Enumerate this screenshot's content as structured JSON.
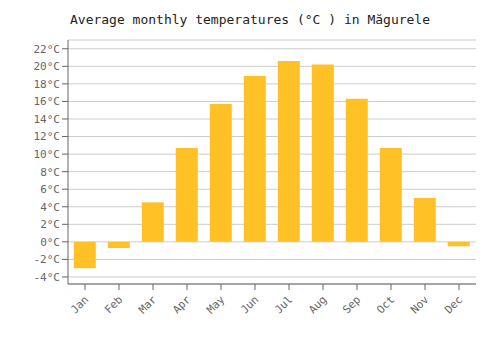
{
  "chart_data": {
    "type": "bar",
    "title": "Average monthly temperatures (°C ) in Măgurele",
    "categories": [
      "Jan",
      "Feb",
      "Mar",
      "Apr",
      "May",
      "Jun",
      "Jul",
      "Aug",
      "Sep",
      "Oct",
      "Nov",
      "Dec"
    ],
    "values": [
      -3.0,
      -0.7,
      4.5,
      10.7,
      15.7,
      18.9,
      20.6,
      20.2,
      16.3,
      10.7,
      5.0,
      -0.5
    ],
    "color": "#FFC125",
    "ylim": [
      -4.8,
      23.0
    ],
    "yticks": [
      {
        "value": -4,
        "label": "-4°C"
      },
      {
        "value": -2,
        "label": "-2°C"
      },
      {
        "value": 0,
        "label": "0°C"
      },
      {
        "value": 2,
        "label": "2°C"
      },
      {
        "value": 4,
        "label": "4°C"
      },
      {
        "value": 6,
        "label": "6°C"
      },
      {
        "value": 8,
        "label": "8°C"
      },
      {
        "value": 10,
        "label": "10°C"
      },
      {
        "value": 12,
        "label": "12°C"
      },
      {
        "value": 14,
        "label": "14°C"
      },
      {
        "value": 16,
        "label": "16°C"
      },
      {
        "value": 18,
        "label": "18°C"
      },
      {
        "value": 20,
        "label": "20°C"
      },
      {
        "value": 22,
        "label": "22°C"
      }
    ],
    "grid": true
  }
}
